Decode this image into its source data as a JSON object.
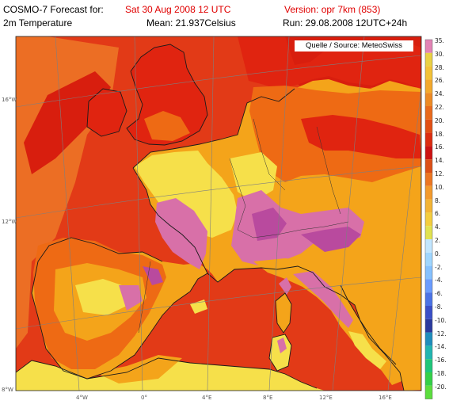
{
  "header": {
    "model_label": "COSMO-7 Forecast for:",
    "forecast_date": "Sat 30 Aug 2008 12 UTC",
    "version": "Version: opr 7km (853)",
    "field": "2m Temperature",
    "mean": "Mean: 21.937Celsius",
    "run": "Run: 29.08.2008 12UTC+24h"
  },
  "source": "Quelle / Source: MeteoSwiss",
  "colors": {
    "header_red": "#e00000",
    "land_yellow": "#f6e04a",
    "land_orange": "#f4a41a",
    "land_darkorange": "#ee6a14",
    "land_red": "#e02410",
    "alpine_pink": "#d870a8",
    "alpine_magenta": "#b94a9e",
    "sea_red": "#e23a17",
    "sea_deep": "#d81e0e",
    "atlantic": "#ec6e24",
    "coast": "#1a1a1a",
    "grid": "#7f7f7f"
  },
  "lat_labels": [
    "16°W",
    "12°W",
    "8°W"
  ],
  "lon_labels": [
    "4°W",
    "0°",
    "4°E",
    "8°E",
    "12°E",
    "16°E"
  ],
  "colorbar": {
    "labels": [
      "35.",
      "30.",
      "28.",
      "26.",
      "24.",
      "22.",
      "20.",
      "18.",
      "16.",
      "14.",
      "12.",
      "10.",
      "8.",
      "6.",
      "4.",
      "2.",
      "0.",
      "-2.",
      "-4.",
      "-6.",
      "-8.",
      "-10.",
      "-12.",
      "-14.",
      "-16.",
      "-18.",
      "-20."
    ],
    "colors": [
      "#e383b5",
      "#ead145",
      "#f3c238",
      "#f3a82c",
      "#ed8a24",
      "#e96a1c",
      "#e24f14",
      "#dc2d10",
      "#cc1212",
      "#dc4f16",
      "#ec7622",
      "#f39a2c",
      "#f3b434",
      "#f4cd3e",
      "#e1e250",
      "#c2e6ff",
      "#9fd6ff",
      "#85c1ff",
      "#6a9cff",
      "#4b73e6",
      "#3a4fc8",
      "#2a3a9e",
      "#1f8dbd",
      "#21b5b1",
      "#1ec67a",
      "#34d048",
      "#5cde3e"
    ]
  }
}
